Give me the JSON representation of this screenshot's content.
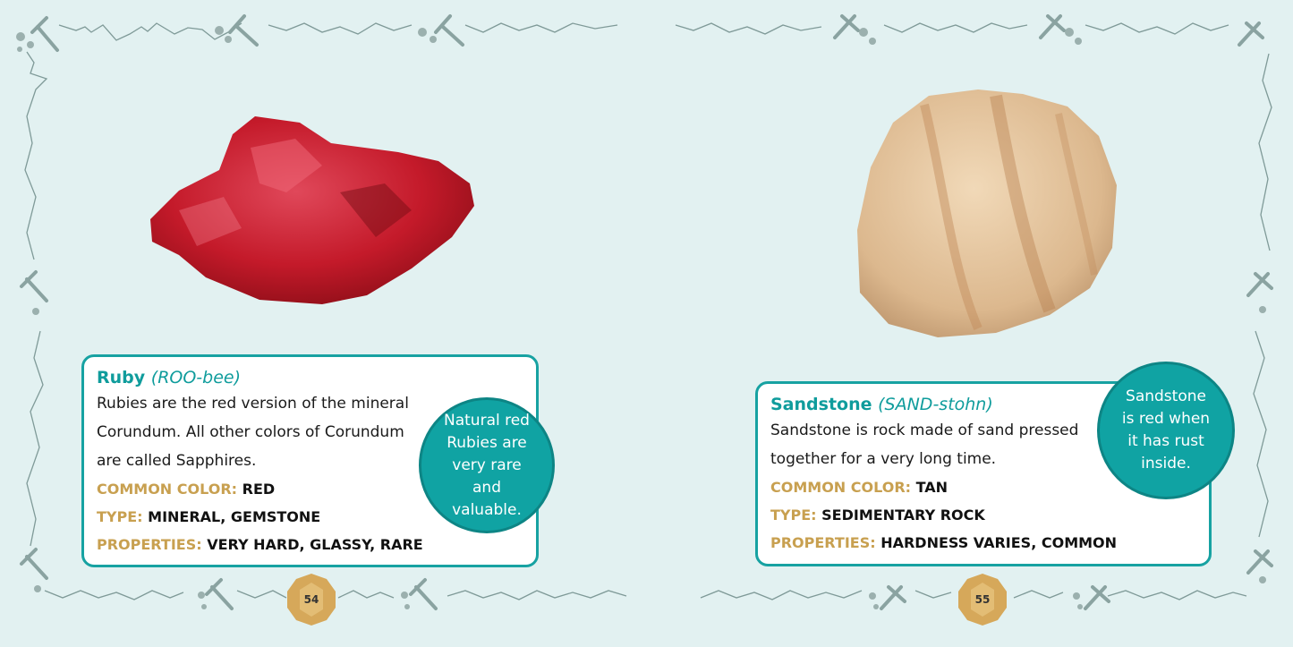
{
  "pages": [
    {
      "number": "54",
      "name": "Ruby",
      "pronunciation": "(ROO-bee)",
      "description": "Rubies are the red version of the mineral Corundum. All other colors of Corundum are called Sapphires.",
      "properties": [
        {
          "key": "COMMON COLOR:",
          "value": "RED"
        },
        {
          "key": "TYPE:",
          "value": "MINERAL, GEMSTONE"
        },
        {
          "key": "PROPERTIES:",
          "value": "VERY HARD, GLASSY, RARE"
        }
      ],
      "callout": "Natural red Rubies are very rare and valuable.",
      "image": "ruby-rock"
    },
    {
      "number": "55",
      "name": "Sandstone",
      "pronunciation": "(SAND-stohn)",
      "description": "Sandstone is rock made of sand pressed together for a very long time.",
      "properties": [
        {
          "key": "COMMON COLOR:",
          "value": "TAN"
        },
        {
          "key": "TYPE:",
          "value": "SEDIMENTARY ROCK"
        },
        {
          "key": "PROPERTIES:",
          "value": "HARDNESS VARIES, COMMON"
        }
      ],
      "callout": "Sandstone is red when it has rust inside.",
      "image": "sandstone-rock"
    }
  ],
  "colors": {
    "background": "#e2f1f1",
    "accent": "#10a3a3",
    "label": "#c8a050"
  }
}
